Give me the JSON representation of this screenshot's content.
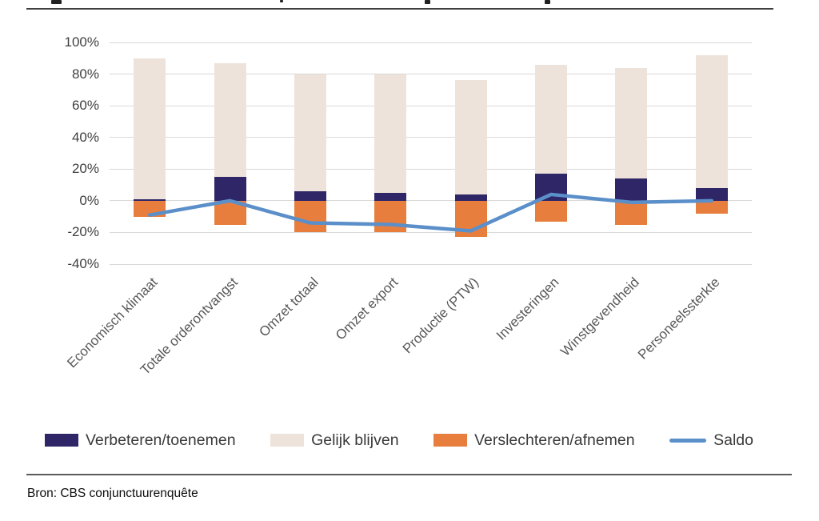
{
  "page": {
    "source_note": "Bron: CBS conjunctuurenquête"
  },
  "chart_data": {
    "type": "bar",
    "subtype": "stacked-bar-with-line-combo",
    "title": "",
    "xlabel": "",
    "ylabel": "",
    "ylim": [
      -40,
      100
    ],
    "ytick_step": 20,
    "ytick_labels": [
      "100%",
      "80%",
      "60%",
      "40%",
      "20%",
      "0%",
      "-20%",
      "-40%"
    ],
    "grid": true,
    "legend_position": "bottom",
    "categories": [
      "Economisch klimaat",
      "Totale orderontvangst",
      "Omzet totaal",
      "Omzet export",
      "Productie (PTW)",
      "Investeringen",
      "Winstgevendheid",
      "Personeelssterkte"
    ],
    "series": [
      {
        "name": "Verbeteren/toenemen",
        "type": "bar",
        "color": "#2e2667",
        "values": [
          1,
          15,
          6,
          5,
          4,
          17,
          14,
          8
        ]
      },
      {
        "name": "Gelijk blijven",
        "type": "bar",
        "color": "#ede3db",
        "values": [
          89,
          72,
          74,
          75,
          72,
          69,
          70,
          84
        ]
      },
      {
        "name": "Verslechteren/afnemen",
        "type": "bar",
        "color": "#e87e3d",
        "values": [
          -10,
          -15,
          -20,
          -20,
          -23,
          -13,
          -15,
          -8
        ]
      },
      {
        "name": "Saldo",
        "type": "line",
        "color": "#5b8fc9",
        "values": [
          -9,
          0,
          -14,
          -15,
          -19,
          4,
          -1,
          0
        ]
      }
    ]
  }
}
